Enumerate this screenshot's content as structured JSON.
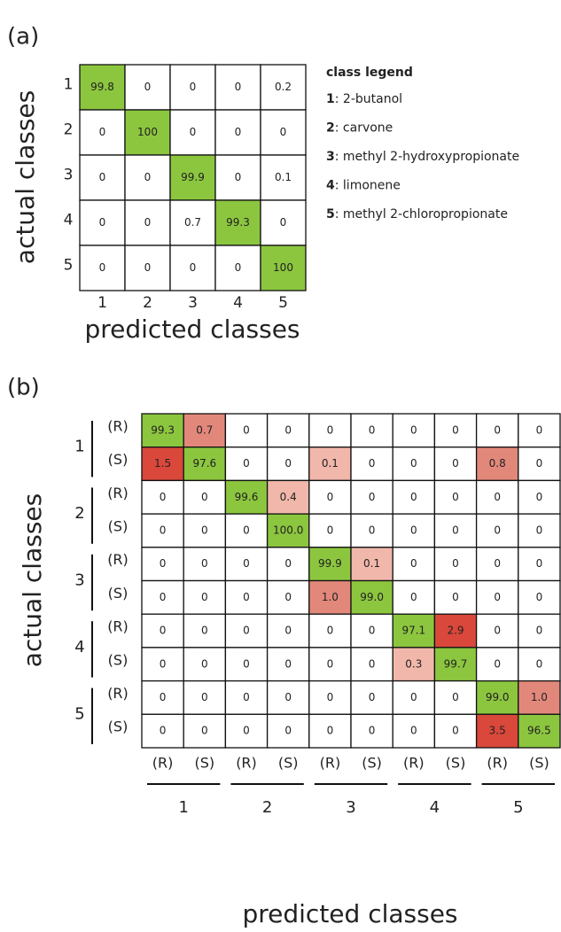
{
  "panels": [
    {
      "label": "(a)",
      "y_axis_label": "actual classes",
      "x_axis_label": "predicted classes",
      "row_labels": [
        "1",
        "2",
        "3",
        "4",
        "5"
      ],
      "col_labels": [
        "1",
        "2",
        "3",
        "4",
        "5"
      ],
      "cells": [
        [
          "99.8",
          "0",
          "0",
          "0",
          "0.2"
        ],
        [
          "0",
          "100",
          "0",
          "0",
          "0"
        ],
        [
          "0",
          "0",
          "99.9",
          "0",
          "0.1"
        ],
        [
          "0",
          "0",
          "0.7",
          "99.3",
          "0"
        ],
        [
          "0",
          "0",
          "0",
          "0",
          "100"
        ]
      ],
      "cell_colors": [
        [
          "#8cc63f",
          null,
          null,
          null,
          null
        ],
        [
          null,
          "#8cc63f",
          null,
          null,
          null
        ],
        [
          null,
          null,
          "#8cc63f",
          null,
          null
        ],
        [
          null,
          null,
          null,
          "#8cc63f",
          null
        ],
        [
          null,
          null,
          null,
          null,
          "#8cc63f"
        ]
      ],
      "legend": {
        "title": "class legend",
        "items": [
          {
            "key": "1",
            "text": ": 2-butanol"
          },
          {
            "key": "2",
            "text": ": carvone"
          },
          {
            "key": "3",
            "text": ": methyl 2-hydroxypropionate"
          },
          {
            "key": "4",
            "text": ": limonene"
          },
          {
            "key": "5",
            "text": ": methyl 2-chloropropionate"
          }
        ]
      }
    },
    {
      "label": "(b)",
      "y_axis_label": "actual classes",
      "x_axis_label": "predicted classes",
      "groups": [
        "1",
        "2",
        "3",
        "4",
        "5"
      ],
      "sub_labels": [
        "(R)",
        "(S)"
      ],
      "cells": [
        [
          "99.3",
          "0.7",
          "0",
          "0",
          "0",
          "0",
          "0",
          "0",
          "0",
          "0"
        ],
        [
          "1.5",
          "97.6",
          "0",
          "0",
          "0.1",
          "0",
          "0",
          "0",
          "0.8",
          "0"
        ],
        [
          "0",
          "0",
          "99.6",
          "0.4",
          "0",
          "0",
          "0",
          "0",
          "0",
          "0"
        ],
        [
          "0",
          "0",
          "0",
          "100.0",
          "0",
          "0",
          "0",
          "0",
          "0",
          "0"
        ],
        [
          "0",
          "0",
          "0",
          "0",
          "99.9",
          "0.1",
          "0",
          "0",
          "0",
          "0"
        ],
        [
          "0",
          "0",
          "0",
          "0",
          "1.0",
          "99.0",
          "0",
          "0",
          "0",
          "0"
        ],
        [
          "0",
          "0",
          "0",
          "0",
          "0",
          "0",
          "97.1",
          "2.9",
          "0",
          "0"
        ],
        [
          "0",
          "0",
          "0",
          "0",
          "0",
          "0",
          "0.3",
          "99.7",
          "0",
          "0"
        ],
        [
          "0",
          "0",
          "0",
          "0",
          "0",
          "0",
          "0",
          "0",
          "99.0",
          "1.0"
        ],
        [
          "0",
          "0",
          "0",
          "0",
          "0",
          "0",
          "0",
          "0",
          "3.5",
          "96.5"
        ]
      ],
      "cell_colors": [
        [
          "#8cc63f",
          "#e2887b",
          null,
          null,
          null,
          null,
          null,
          null,
          null,
          null
        ],
        [
          "#d9483b",
          "#8cc63f",
          null,
          null,
          "#f1b7ab",
          null,
          null,
          null,
          "#e2887b",
          null
        ],
        [
          null,
          null,
          "#8cc63f",
          "#f1b7ab",
          null,
          null,
          null,
          null,
          null,
          null
        ],
        [
          null,
          null,
          null,
          "#8cc63f",
          null,
          null,
          null,
          null,
          null,
          null
        ],
        [
          null,
          null,
          null,
          null,
          "#8cc63f",
          "#f1b7ab",
          null,
          null,
          null,
          null
        ],
        [
          null,
          null,
          null,
          null,
          "#e2887b",
          "#8cc63f",
          null,
          null,
          null,
          null
        ],
        [
          null,
          null,
          null,
          null,
          null,
          null,
          "#8cc63f",
          "#d9483b",
          null,
          null
        ],
        [
          null,
          null,
          null,
          null,
          null,
          null,
          "#f1b7ab",
          "#8cc63f",
          null,
          null
        ],
        [
          null,
          null,
          null,
          null,
          null,
          null,
          null,
          null,
          "#8cc63f",
          "#e2887b"
        ],
        [
          null,
          null,
          null,
          null,
          null,
          null,
          null,
          null,
          "#d9483b",
          "#8cc63f"
        ]
      ]
    }
  ]
}
